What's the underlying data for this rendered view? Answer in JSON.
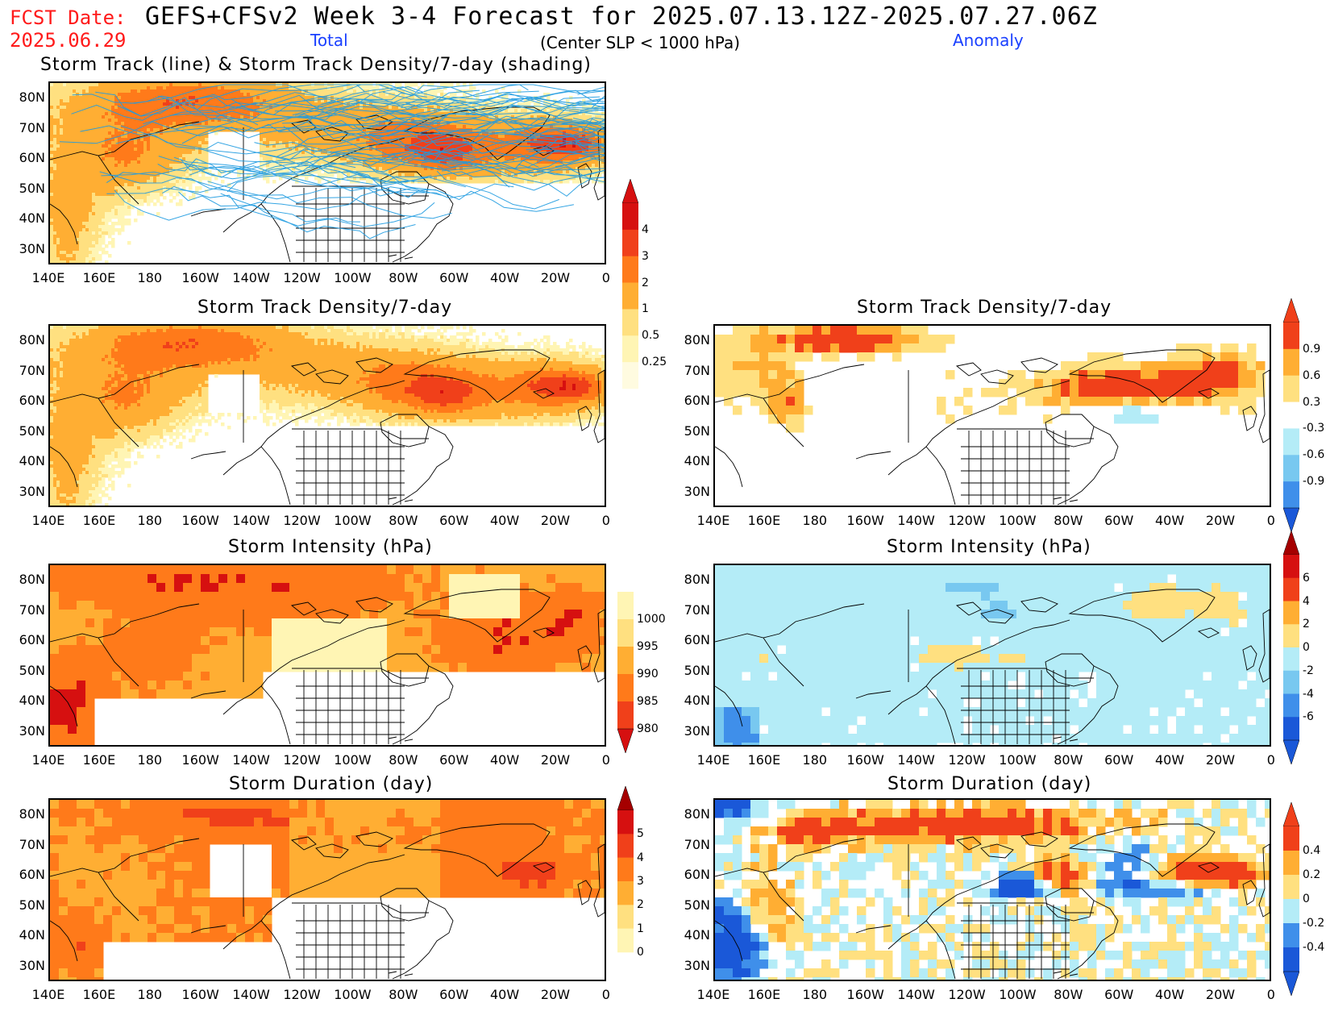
{
  "header": {
    "fcst_label": "FCST Date:",
    "fcst_date": "2025.06.29",
    "title": "GEFS+CFSv2 Week 3-4 Forecast for 2025.07.13.12Z-2025.07.27.06Z",
    "total_label": "Total",
    "criterion": "(Center SLP < 1000 hPa)",
    "anomaly_label": "Anomaly"
  },
  "axes": {
    "lat_labels": [
      "80N",
      "70N",
      "60N",
      "50N",
      "40N",
      "30N"
    ],
    "lon_labels": [
      "140E",
      "160E",
      "180",
      "160W",
      "140W",
      "120W",
      "100W",
      "80W",
      "60W",
      "40W",
      "20W",
      "0"
    ]
  },
  "panels": {
    "track": {
      "title": "Storm Track (line) & Storm Track Density/7-day (shading)"
    },
    "density_total": {
      "title": "Storm Track Density/7-day"
    },
    "density_anom": {
      "title": "Storm Track Density/7-day"
    },
    "intensity_total": {
      "title": "Storm Intensity (hPa)"
    },
    "intensity_anom": {
      "title": "Storm Intensity (hPa)"
    },
    "duration_total": {
      "title": "Storm Duration (day)"
    },
    "duration_anom": {
      "title": "Storm Duration (day)"
    }
  },
  "colorbars": {
    "density_total": [
      "4",
      "3",
      "2",
      "1",
      "0.5",
      "0.25"
    ],
    "density_anom": [
      "0.9",
      "0.6",
      "0.3",
      "-0.3",
      "-0.6",
      "-0.9"
    ],
    "intensity_total": [
      "1000",
      "995",
      "990",
      "985",
      "980"
    ],
    "intensity_anom": [
      "6",
      "4",
      "2",
      "0",
      "-2",
      "-4",
      "-6"
    ],
    "duration_total": [
      "5",
      "4",
      "3",
      "2",
      "1",
      "0"
    ],
    "duration_anom": [
      "0.4",
      "0.2",
      "0",
      "-0.2",
      "-0.4"
    ]
  },
  "colors": {
    "header_red": "#ff1a1a",
    "header_blue": "#1a40ff",
    "track_line": "#1e9be0",
    "warm": [
      "#fff5b4",
      "#ffe080",
      "#ffae33",
      "#ff7a1a",
      "#f0401a",
      "#d61010",
      "#a50000"
    ],
    "cool": [
      "#b4ecf7",
      "#78c8f0",
      "#3f8fea",
      "#1a58d8",
      "#1437b0"
    ]
  }
}
